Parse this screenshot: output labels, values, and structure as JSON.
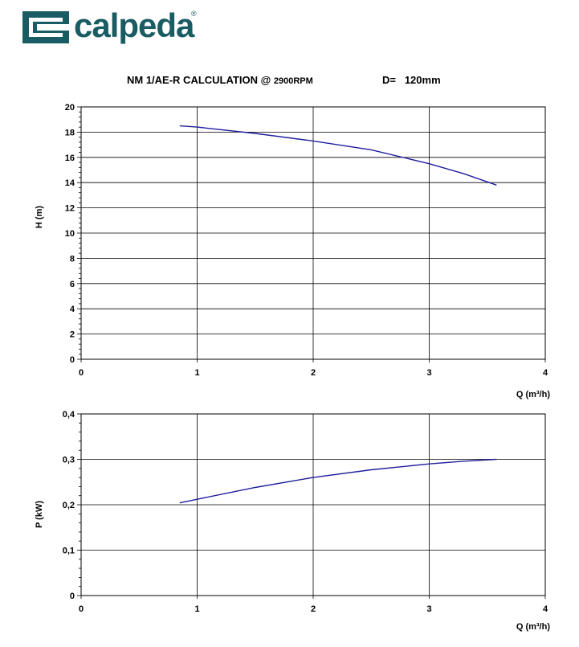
{
  "brand": {
    "name": "calpeda",
    "reg": "®",
    "color": "#1a5c63"
  },
  "header": {
    "title_main": "NM 1/AE-R CALCULATION @",
    "title_rpm": "2900RPM",
    "diameter": "D=   120mm"
  },
  "chart_data": [
    {
      "type": "line",
      "title": "",
      "xlabel": "Q (m³/h)",
      "ylabel": "H (m)",
      "xlim": [
        0,
        4
      ],
      "ylim": [
        0,
        20
      ],
      "xticks": [
        "0",
        "1",
        "2",
        "3",
        "4"
      ],
      "yticks": [
        "0",
        "2",
        "4",
        "6",
        "8",
        "10",
        "12",
        "14",
        "16",
        "18",
        "20"
      ],
      "grid": true,
      "line_color": "#1f1f9e",
      "series": [
        {
          "x": [
            0.85,
            1.0,
            1.5,
            2.0,
            2.5,
            3.0,
            3.3,
            3.58
          ],
          "y": [
            18.5,
            18.4,
            17.9,
            17.3,
            16.6,
            15.5,
            14.7,
            13.8
          ]
        }
      ]
    },
    {
      "type": "line",
      "title": "",
      "xlabel": "Q (m³/h)",
      "ylabel": "P (kW)",
      "xlim": [
        0,
        4
      ],
      "ylim": [
        0,
        0.4
      ],
      "xticks": [
        "0",
        "1",
        "2",
        "3",
        "4"
      ],
      "yticks": [
        "0",
        "0,1",
        "0,2",
        "0,3",
        "0,4"
      ],
      "grid": true,
      "line_color": "#1f1f9e",
      "series": [
        {
          "x": [
            0.85,
            1.0,
            1.5,
            2.0,
            2.5,
            3.0,
            3.3,
            3.58
          ],
          "y": [
            0.204,
            0.212,
            0.238,
            0.26,
            0.277,
            0.29,
            0.296,
            0.3
          ]
        }
      ]
    }
  ]
}
